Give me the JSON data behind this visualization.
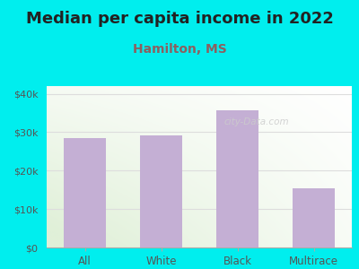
{
  "title": "Median per capita income in 2022",
  "subtitle": "Hamilton, MS",
  "categories": [
    "All",
    "White",
    "Black",
    "Multirace"
  ],
  "values": [
    28500,
    29200,
    35800,
    15500
  ],
  "bar_color": "#c4afd4",
  "title_fontsize": 13,
  "subtitle_fontsize": 10,
  "title_color": "#222222",
  "subtitle_color": "#8B6060",
  "background_outer": "#00EEEE",
  "background_inner_top_left": "#e0f0d8",
  "background_inner_bottom_right": "#ffffff",
  "ylim": [
    0,
    42000
  ],
  "yticks": [
    0,
    10000,
    20000,
    30000,
    40000
  ],
  "ytick_labels": [
    "$0",
    "$10k",
    "$20k",
    "$30k",
    "$40k"
  ],
  "watermark": "city-Data.com",
  "tick_color": "#555555",
  "grid_color": "#dddddd"
}
